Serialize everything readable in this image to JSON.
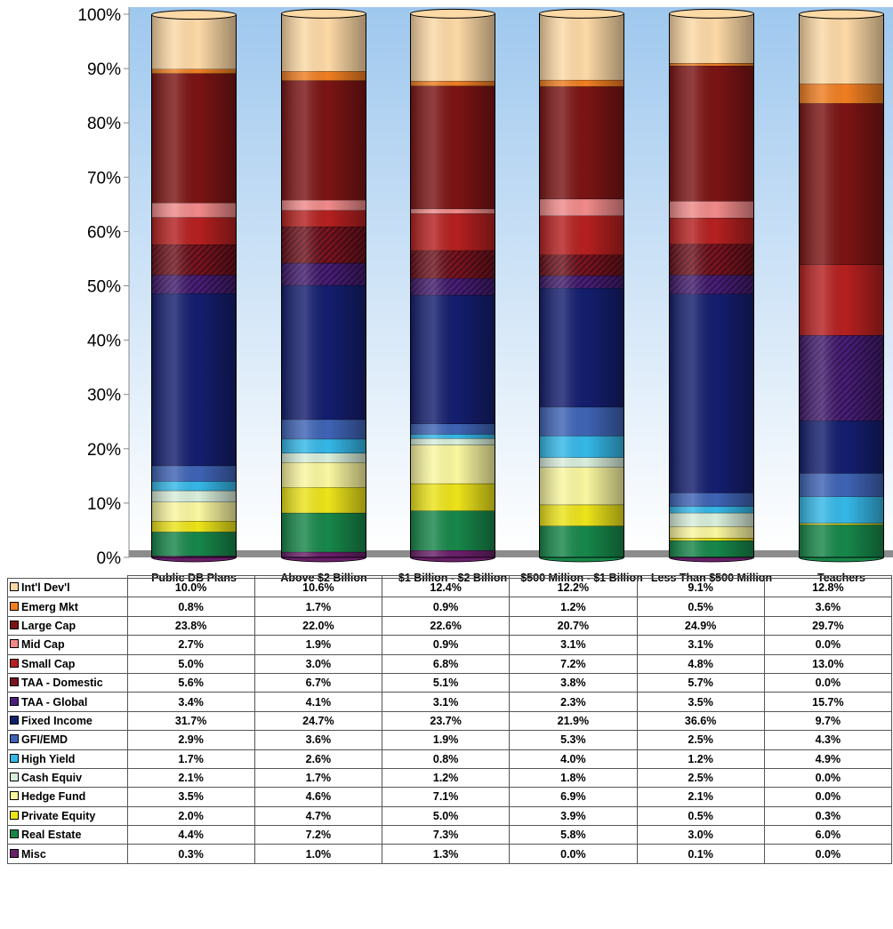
{
  "chart_data": {
    "type": "bar",
    "stacked": true,
    "ylim": [
      0,
      100
    ],
    "yticks": [
      "0%",
      "10%",
      "20%",
      "30%",
      "40%",
      "50%",
      "60%",
      "70%",
      "80%",
      "90%",
      "100%"
    ],
    "categories": [
      "Public DB Plans",
      "Above $2 Billion",
      "$1 Billion - $2 Billion",
      "$500 Million - $1 Billion",
      "Less Than $500 Million",
      "Teachers"
    ],
    "series": [
      {
        "name": "Int'l Dev'l",
        "color": "#FDD9A6",
        "pattern": false,
        "labels": [
          "10.0%",
          "10.6%",
          "12.4%",
          "12.2%",
          "9.1%",
          "12.8%"
        ],
        "values": [
          10.0,
          10.6,
          12.4,
          12.2,
          9.1,
          12.8
        ]
      },
      {
        "name": "Emerg Mkt",
        "color": "#F07E22",
        "pattern": false,
        "labels": [
          "0.8%",
          "1.7%",
          "0.9%",
          "1.2%",
          "0.5%",
          "3.6%"
        ],
        "values": [
          0.8,
          1.7,
          0.9,
          1.2,
          0.5,
          3.6
        ]
      },
      {
        "name": "Large Cap",
        "color": "#7B1414",
        "pattern": false,
        "labels": [
          "23.8%",
          "22.0%",
          "22.6%",
          "20.7%",
          "24.9%",
          "29.7%"
        ],
        "values": [
          23.8,
          22.0,
          22.6,
          20.7,
          24.9,
          29.7
        ]
      },
      {
        "name": "Mid Cap",
        "color": "#F08A8A",
        "pattern": false,
        "labels": [
          "2.7%",
          "1.9%",
          "0.9%",
          "3.1%",
          "3.1%",
          "0.0%"
        ],
        "values": [
          2.7,
          1.9,
          0.9,
          3.1,
          3.1,
          0.0
        ]
      },
      {
        "name": "Small Cap",
        "color": "#B52020",
        "pattern": false,
        "labels": [
          "5.0%",
          "3.0%",
          "6.8%",
          "7.2%",
          "4.8%",
          "13.0%"
        ],
        "values": [
          5.0,
          3.0,
          6.8,
          7.2,
          4.8,
          13.0
        ]
      },
      {
        "name": "TAA - Domestic",
        "color": "#7A1420",
        "pattern": true,
        "labels": [
          "5.6%",
          "6.7%",
          "5.1%",
          "3.8%",
          "5.7%",
          "0.0%"
        ],
        "values": [
          5.6,
          6.7,
          5.1,
          3.8,
          5.7,
          0.0
        ]
      },
      {
        "name": "TAA - Global",
        "color": "#4A1E7A",
        "pattern": true,
        "labels": [
          "3.4%",
          "4.1%",
          "3.1%",
          "2.3%",
          "3.5%",
          "15.7%"
        ],
        "values": [
          3.4,
          4.1,
          3.1,
          2.3,
          3.5,
          15.7
        ]
      },
      {
        "name": "Fixed Income",
        "color": "#141E6E",
        "pattern": false,
        "labels": [
          "31.7%",
          "24.7%",
          "23.7%",
          "21.9%",
          "36.6%",
          "9.7%"
        ],
        "values": [
          31.7,
          24.7,
          23.7,
          21.9,
          36.6,
          9.7
        ]
      },
      {
        "name": "GFI/EMD",
        "color": "#3F63B5",
        "pattern": false,
        "labels": [
          "2.9%",
          "3.6%",
          "1.9%",
          "5.3%",
          "2.5%",
          "4.3%"
        ],
        "values": [
          2.9,
          3.6,
          1.9,
          5.3,
          2.5,
          4.3
        ]
      },
      {
        "name": "High Yield",
        "color": "#35B8E8",
        "pattern": false,
        "labels": [
          "1.7%",
          "2.6%",
          "0.8%",
          "4.0%",
          "1.2%",
          "4.9%"
        ],
        "values": [
          1.7,
          2.6,
          0.8,
          4.0,
          1.2,
          4.9
        ]
      },
      {
        "name": "Cash Equiv",
        "color": "#D8EEDB",
        "pattern": false,
        "labels": [
          "2.1%",
          "1.7%",
          "1.2%",
          "1.8%",
          "2.5%",
          "0.0%"
        ],
        "values": [
          2.1,
          1.7,
          1.2,
          1.8,
          2.5,
          0.0
        ]
      },
      {
        "name": "Hedge Fund",
        "color": "#FAF7A0",
        "pattern": false,
        "labels": [
          "3.5%",
          "4.6%",
          "7.1%",
          "6.9%",
          "2.1%",
          "0.0%"
        ],
        "values": [
          3.5,
          4.6,
          7.1,
          6.9,
          2.1,
          0.0
        ]
      },
      {
        "name": "Private Equity",
        "color": "#EDE41A",
        "pattern": false,
        "labels": [
          "2.0%",
          "4.7%",
          "5.0%",
          "3.9%",
          "0.5%",
          "0.3%"
        ],
        "values": [
          2.0,
          4.7,
          5.0,
          3.9,
          0.5,
          0.3
        ]
      },
      {
        "name": "Real Estate",
        "color": "#17874A",
        "pattern": false,
        "labels": [
          "4.4%",
          "7.2%",
          "7.3%",
          "5.8%",
          "3.0%",
          "6.0%"
        ],
        "values": [
          4.4,
          7.2,
          7.3,
          5.8,
          3.0,
          6.0
        ]
      },
      {
        "name": "Misc",
        "color": "#6A1F6A",
        "pattern": false,
        "labels": [
          "0.3%",
          "1.0%",
          "1.3%",
          "0.0%",
          "0.1%",
          "0.0%"
        ],
        "values": [
          0.3,
          1.0,
          1.3,
          0.0,
          0.1,
          0.0
        ]
      }
    ]
  }
}
